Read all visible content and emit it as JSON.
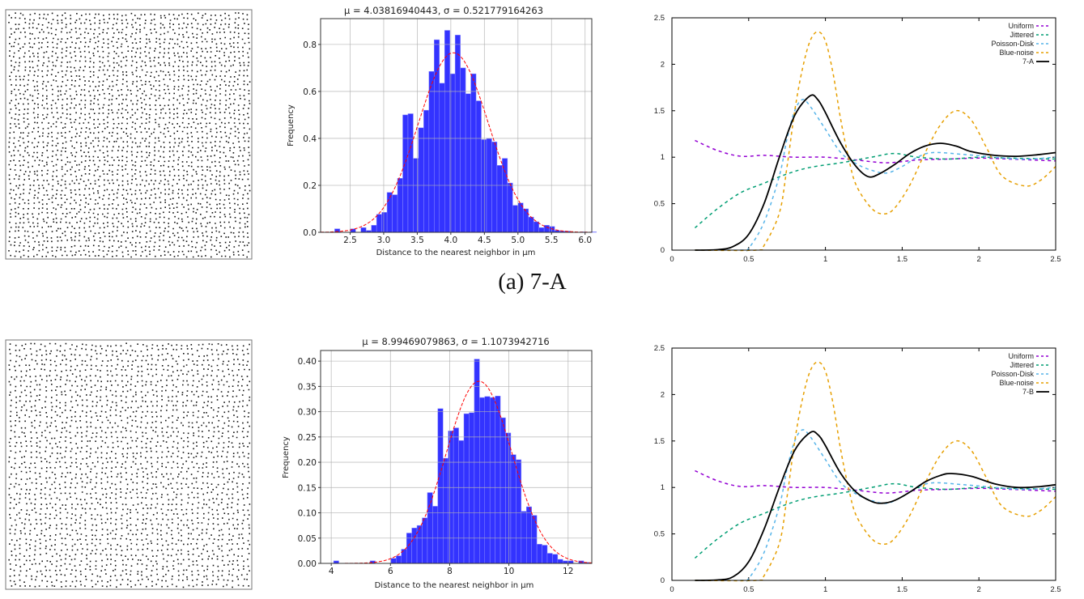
{
  "caption": "(a) 7-A",
  "colors": {
    "bars": "#3333ff",
    "fit": "#ff0000",
    "uniform": "#9400d3",
    "jittered": "#009e73",
    "poisson": "#56b4e9",
    "blue_noise": "#e69f00",
    "sample": "#000000"
  },
  "chart_data": [
    {
      "type": "bar",
      "title": "μ = 4.03816940443,  σ = 0.521779164263",
      "xlabel": "Distance to the nearest neighbor in µm",
      "ylabel": "Frequency",
      "mu": 4.03816940443,
      "sigma": 0.521779164263,
      "bin_start": 2.27,
      "bin_width": 0.078,
      "values": [
        0.015,
        0,
        0,
        0.015,
        0,
        0.02,
        0.008,
        0.03,
        0.077,
        0.085,
        0.17,
        0.16,
        0.23,
        0.5,
        0.505,
        0.315,
        0.445,
        0.52,
        0.685,
        0.82,
        0.635,
        0.86,
        0.675,
        0.84,
        0.7,
        0.59,
        0.675,
        0.56,
        0.395,
        0.4,
        0.385,
        0.285,
        0.315,
        0.21,
        0.115,
        0.125,
        0.1,
        0.065,
        0.045,
        0.02,
        0.03,
        0.025,
        0.008,
        0.005,
        0.005,
        0,
        0,
        0.002,
        0,
        0.002
      ],
      "xlim": [
        2.06,
        6.1
      ],
      "ylim": [
        0,
        0.91
      ],
      "xticks": [
        "2.5",
        "3.0",
        "3.5",
        "4.0",
        "4.5",
        "5.0",
        "5.5",
        "6.0"
      ],
      "yticks": [
        "0.0",
        "0.2",
        "0.4",
        "0.6",
        "0.8"
      ],
      "grid": true
    },
    {
      "type": "line",
      "xlim": [
        0,
        2.5
      ],
      "ylim": [
        0,
        2.5
      ],
      "xticks": [
        "0",
        "0.5",
        "1",
        "1.5",
        "2",
        "2.5"
      ],
      "yticks": [
        "0",
        "0.5",
        "1",
        "1.5",
        "2",
        "2.5"
      ],
      "legend_position": "top-right",
      "grid": false,
      "series": [
        {
          "name": "Uniform",
          "style": "dashed",
          "color": "#9400d3",
          "x": [
            0.15,
            0.3,
            0.45,
            0.6,
            0.8,
            1.0,
            1.2,
            1.4,
            1.6,
            1.8,
            2.0,
            2.2,
            2.5
          ],
          "y": [
            1.18,
            1.07,
            1.01,
            1.02,
            1.0,
            1.0,
            0.97,
            0.94,
            0.97,
            0.98,
            0.99,
            0.98,
            0.96
          ]
        },
        {
          "name": "Jittered",
          "style": "dashed",
          "color": "#009e73",
          "x": [
            0.15,
            0.3,
            0.45,
            0.6,
            0.75,
            0.9,
            1.1,
            1.3,
            1.45,
            1.6,
            1.8,
            2.0,
            2.2,
            2.5
          ],
          "y": [
            0.24,
            0.45,
            0.62,
            0.72,
            0.82,
            0.89,
            0.94,
            1.0,
            1.04,
            1.0,
            0.98,
            1.0,
            0.99,
            0.98
          ]
        },
        {
          "name": "Poisson-Disk",
          "style": "dashed",
          "color": "#56b4e9",
          "x": [
            0.15,
            0.45,
            0.5,
            0.6,
            0.7,
            0.75,
            0.8,
            0.85,
            0.9,
            1.0,
            1.1,
            1.2,
            1.3,
            1.4,
            1.5,
            1.6,
            1.7,
            1.9,
            2.1,
            2.3,
            2.5
          ],
          "y": [
            0,
            0,
            0.02,
            0.3,
            0.8,
            1.2,
            1.5,
            1.62,
            1.55,
            1.3,
            1.05,
            0.93,
            0.86,
            0.83,
            0.9,
            1.0,
            1.05,
            1.03,
            1.0,
            0.98,
            1.0
          ]
        },
        {
          "name": "Blue-noise",
          "style": "dashed",
          "color": "#e69f00",
          "x": [
            0.15,
            0.55,
            0.6,
            0.7,
            0.75,
            0.8,
            0.85,
            0.9,
            0.95,
            1.0,
            1.05,
            1.1,
            1.15,
            1.2,
            1.3,
            1.38,
            1.45,
            1.55,
            1.65,
            1.75,
            1.85,
            1.95,
            2.05,
            2.15,
            2.3,
            2.4,
            2.5
          ],
          "y": [
            0,
            0,
            0.05,
            0.4,
            0.9,
            1.5,
            1.95,
            2.25,
            2.35,
            2.25,
            1.9,
            1.4,
            1.0,
            0.7,
            0.45,
            0.39,
            0.45,
            0.7,
            1.05,
            1.35,
            1.5,
            1.4,
            1.1,
            0.8,
            0.69,
            0.75,
            0.9
          ]
        },
        {
          "name": "7-A",
          "style": "solid",
          "color": "#000000",
          "x": [
            0.15,
            0.3,
            0.4,
            0.5,
            0.6,
            0.7,
            0.8,
            0.9,
            0.95,
            1.0,
            1.1,
            1.2,
            1.28,
            1.35,
            1.45,
            1.55,
            1.65,
            1.75,
            1.85,
            1.95,
            2.1,
            2.25,
            2.4,
            2.5
          ],
          "y": [
            0,
            0.005,
            0.04,
            0.17,
            0.5,
            1.0,
            1.45,
            1.66,
            1.62,
            1.48,
            1.15,
            0.9,
            0.79,
            0.82,
            0.92,
            1.04,
            1.12,
            1.15,
            1.12,
            1.06,
            1.02,
            1.01,
            1.03,
            1.05
          ]
        }
      ]
    },
    {
      "type": "bar",
      "title": "μ = 8.99469079863,  σ = 1.1073942716",
      "xlabel": "Distance to the nearest neighbor in µm",
      "ylabel": "Frequency",
      "mu": 8.99469079863,
      "sigma": 1.1073942716,
      "bin_start": 4.08,
      "bin_width": 0.176,
      "values": [
        0.005,
        0,
        0,
        0,
        0,
        0,
        0,
        0.005,
        0,
        0,
        0,
        0.01,
        0.015,
        0.028,
        0.06,
        0.07,
        0.075,
        0.09,
        0.14,
        0.113,
        0.306,
        0.208,
        0.262,
        0.268,
        0.243,
        0.296,
        0.298,
        0.404,
        0.328,
        0.33,
        0.328,
        0.331,
        0.288,
        0.258,
        0.215,
        0.205,
        0.103,
        0.112,
        0.095,
        0.038,
        0.036,
        0.02,
        0.018,
        0.008,
        0.005,
        0.005,
        0,
        0.005,
        0.002
      ],
      "xlim": [
        3.64,
        12.8
      ],
      "ylim": [
        0,
        0.421
      ],
      "xticks": [
        "4",
        "6",
        "8",
        "10",
        "12"
      ],
      "yticks": [
        "0.00",
        "0.05",
        "0.10",
        "0.15",
        "0.20",
        "0.25",
        "0.30",
        "0.35",
        "0.40"
      ],
      "grid": true
    },
    {
      "type": "line",
      "xlim": [
        0,
        2.5
      ],
      "ylim": [
        0,
        2.5
      ],
      "xticks": [
        "0",
        "0.5",
        "1",
        "1.5",
        "2",
        "2.5"
      ],
      "yticks": [
        "0",
        "0.5",
        "1",
        "1.5",
        "2",
        "2.5"
      ],
      "legend_position": "top-right",
      "grid": false,
      "series": [
        {
          "name": "Uniform",
          "style": "dashed",
          "color": "#9400d3",
          "x": [
            0.15,
            0.3,
            0.45,
            0.6,
            0.8,
            1.0,
            1.2,
            1.4,
            1.6,
            1.8,
            2.0,
            2.2,
            2.5
          ],
          "y": [
            1.18,
            1.07,
            1.01,
            1.02,
            1.0,
            1.0,
            0.97,
            0.94,
            0.97,
            0.98,
            0.99,
            0.98,
            0.96
          ]
        },
        {
          "name": "Jittered",
          "style": "dashed",
          "color": "#009e73",
          "x": [
            0.15,
            0.3,
            0.45,
            0.6,
            0.75,
            0.9,
            1.1,
            1.3,
            1.45,
            1.6,
            1.8,
            2.0,
            2.2,
            2.5
          ],
          "y": [
            0.24,
            0.45,
            0.62,
            0.72,
            0.82,
            0.89,
            0.94,
            1.0,
            1.04,
            1.0,
            0.98,
            1.0,
            0.99,
            0.98
          ]
        },
        {
          "name": "Poisson-Disk",
          "style": "dashed",
          "color": "#56b4e9",
          "x": [
            0.15,
            0.45,
            0.5,
            0.6,
            0.7,
            0.75,
            0.8,
            0.85,
            0.9,
            1.0,
            1.1,
            1.2,
            1.3,
            1.4,
            1.5,
            1.6,
            1.7,
            1.9,
            2.1,
            2.3,
            2.5
          ],
          "y": [
            0,
            0,
            0.02,
            0.3,
            0.8,
            1.2,
            1.5,
            1.62,
            1.55,
            1.3,
            1.05,
            0.93,
            0.86,
            0.83,
            0.9,
            1.0,
            1.05,
            1.03,
            1.0,
            0.98,
            1.0
          ]
        },
        {
          "name": "Blue-noise",
          "style": "dashed",
          "color": "#e69f00",
          "x": [
            0.15,
            0.55,
            0.6,
            0.7,
            0.75,
            0.8,
            0.85,
            0.9,
            0.95,
            1.0,
            1.05,
            1.1,
            1.15,
            1.2,
            1.3,
            1.38,
            1.45,
            1.55,
            1.65,
            1.75,
            1.85,
            1.95,
            2.05,
            2.15,
            2.3,
            2.4,
            2.5
          ],
          "y": [
            0,
            0,
            0.05,
            0.4,
            0.9,
            1.5,
            1.95,
            2.25,
            2.35,
            2.25,
            1.9,
            1.4,
            1.0,
            0.7,
            0.45,
            0.39,
            0.45,
            0.7,
            1.05,
            1.35,
            1.5,
            1.4,
            1.1,
            0.8,
            0.69,
            0.75,
            0.9
          ]
        },
        {
          "name": "7-B",
          "style": "solid",
          "color": "#000000",
          "x": [
            0.15,
            0.3,
            0.4,
            0.5,
            0.6,
            0.7,
            0.8,
            0.9,
            0.95,
            1.0,
            1.1,
            1.2,
            1.3,
            1.37,
            1.45,
            1.55,
            1.65,
            1.75,
            1.82,
            1.95,
            2.1,
            2.25,
            2.4,
            2.5
          ],
          "y": [
            0,
            0.005,
            0.04,
            0.2,
            0.55,
            1.0,
            1.4,
            1.59,
            1.57,
            1.45,
            1.15,
            0.95,
            0.85,
            0.83,
            0.86,
            0.95,
            1.06,
            1.13,
            1.15,
            1.12,
            1.04,
            1.0,
            1.01,
            1.03
          ]
        }
      ]
    }
  ]
}
